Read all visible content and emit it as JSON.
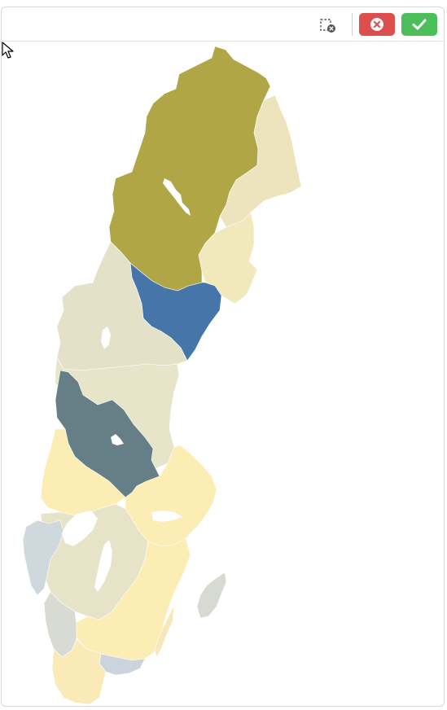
{
  "toolbar": {
    "clear_selection_icon": "clear-selection-icon",
    "cancel_icon": "close-circle-icon",
    "confirm_icon": "check-icon",
    "cancel_color": "#dd4f4f",
    "confirm_color": "#4cbf5a"
  },
  "map": {
    "country": "Sweden",
    "regions": [
      {
        "key": "norrbotten",
        "color": "#b0a646",
        "state": "selected"
      },
      {
        "key": "vasterbotten",
        "color": "#ede4bd",
        "state": "normal"
      },
      {
        "key": "vasternorrland",
        "color": "#f1e8bc",
        "state": "normal"
      },
      {
        "key": "angermanland-selected",
        "color": "#4575a9",
        "state": "selected"
      },
      {
        "key": "jamtland",
        "color": "#e3e2c8",
        "state": "normal"
      },
      {
        "key": "gavleborg",
        "color": "#e6e4c9",
        "state": "normal"
      },
      {
        "key": "dalarna",
        "color": "#667f86",
        "state": "selected"
      },
      {
        "key": "varmland",
        "color": "#fbedb4",
        "state": "normal"
      },
      {
        "key": "uppsala-stockholm",
        "color": "#fbedb4",
        "state": "normal"
      },
      {
        "key": "vastra-gotaland",
        "color": "#e6e3c8",
        "state": "normal"
      },
      {
        "key": "bohuslan",
        "color": "#cfd9dd",
        "state": "normal"
      },
      {
        "key": "smaland",
        "color": "#fbedb4",
        "state": "normal"
      },
      {
        "key": "halland",
        "color": "#d7dbd3",
        "state": "normal"
      },
      {
        "key": "blekinge",
        "color": "#cbd4dd",
        "state": "normal"
      },
      {
        "key": "skane",
        "color": "#f9eab8",
        "state": "normal"
      },
      {
        "key": "gotland",
        "color": "#d6dad3",
        "state": "normal"
      },
      {
        "key": "oland",
        "color": "#f6e8b9",
        "state": "normal"
      }
    ]
  }
}
